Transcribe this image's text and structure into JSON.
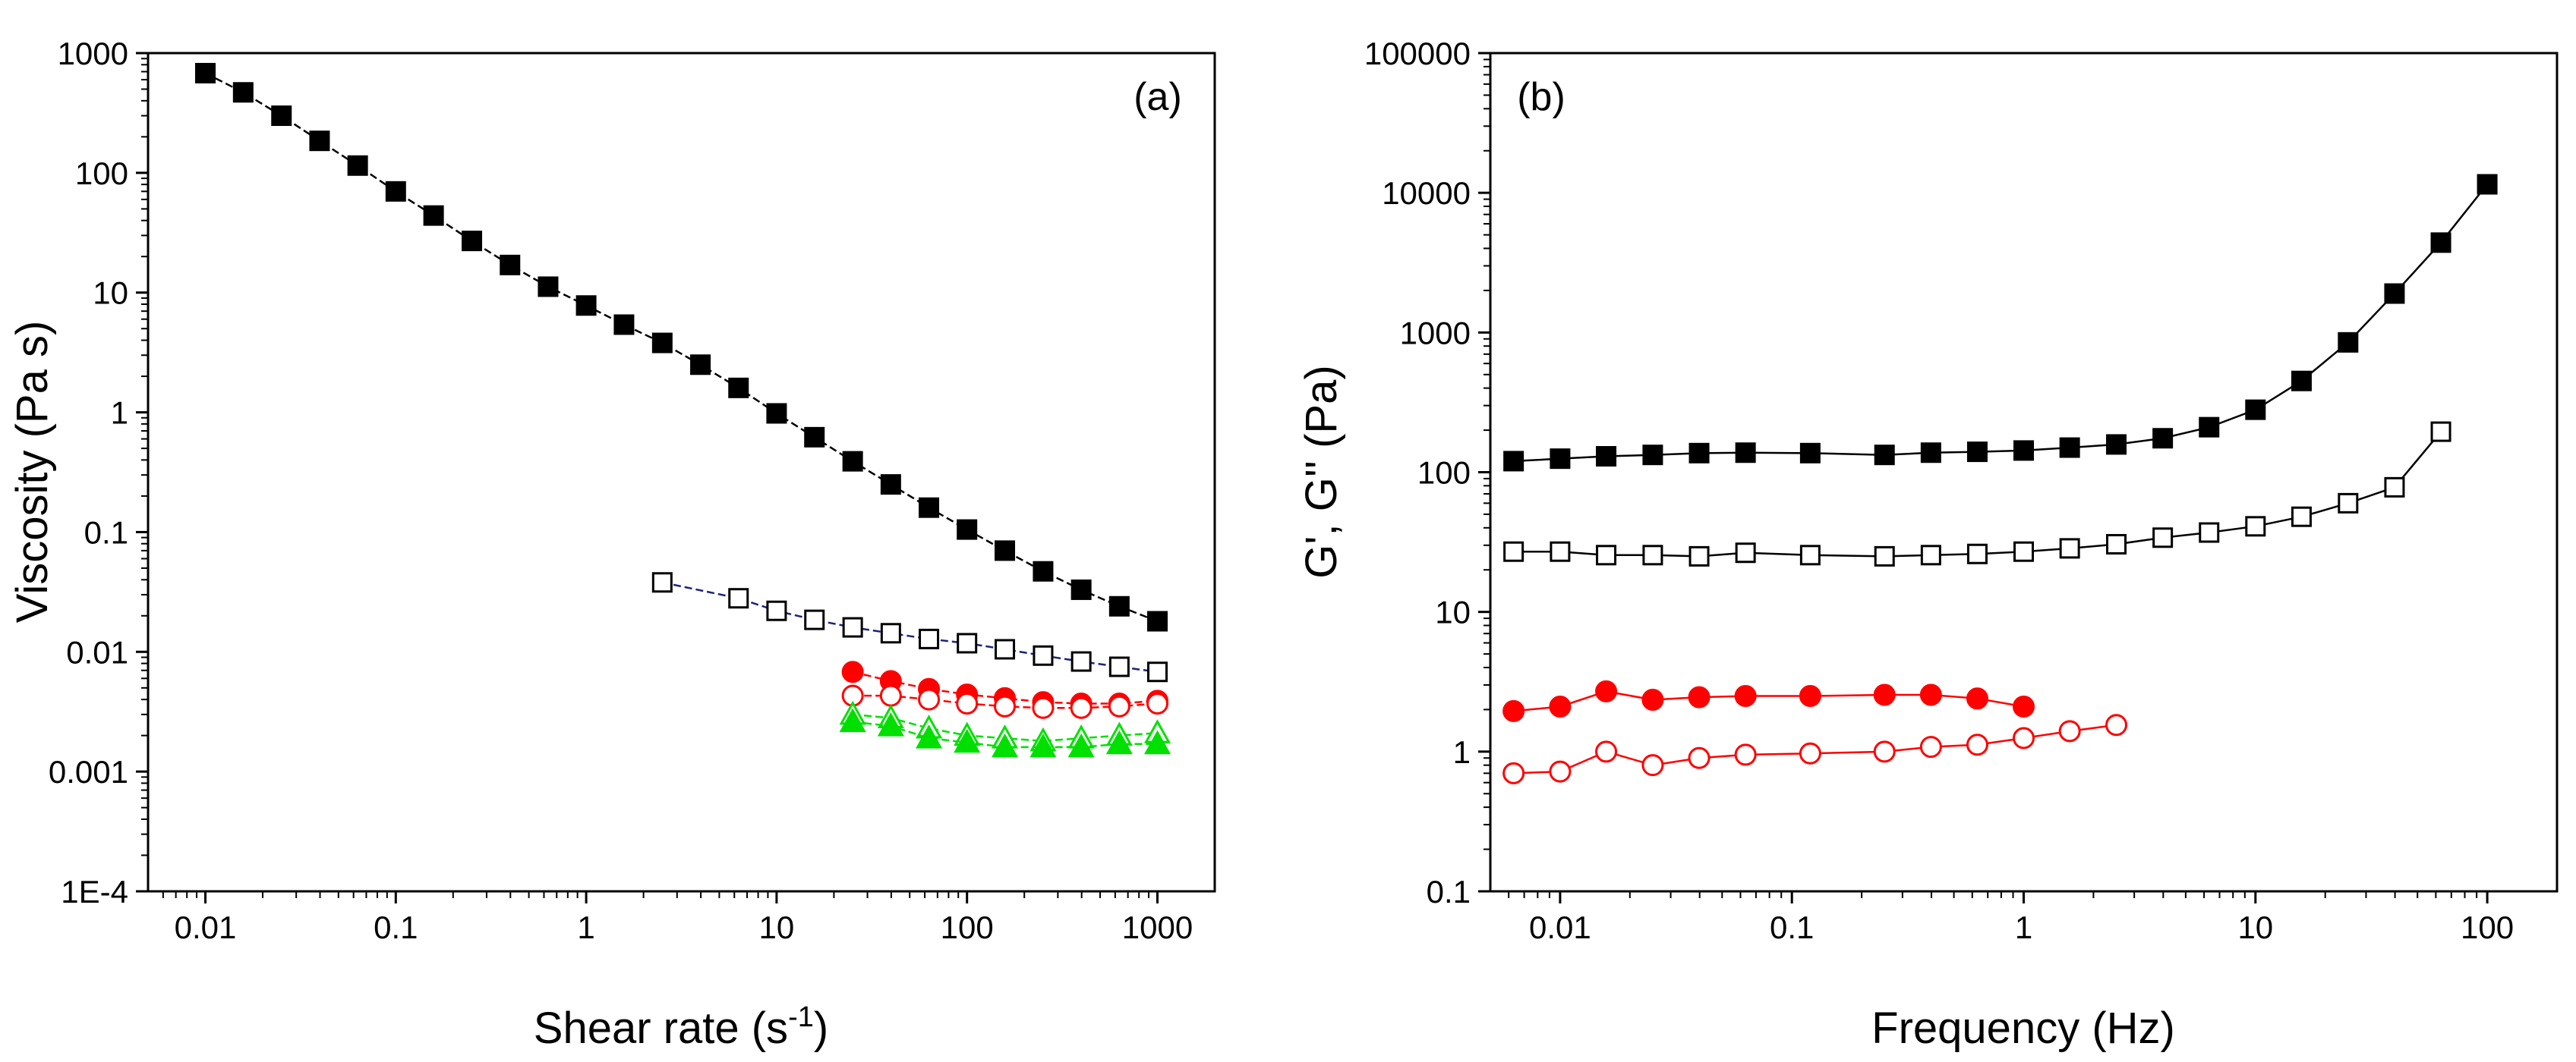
{
  "chart_data": [
    {
      "type": "scatter",
      "panel_label": "(a)",
      "xscale": "log",
      "yscale": "log",
      "xlim": [
        0.005,
        2000
      ],
      "ylim": [
        0.0001,
        1000
      ],
      "xticks": [
        0.01,
        0.1,
        1,
        10,
        100,
        1000
      ],
      "xtick_labels": [
        "0.01",
        "0.1",
        "1",
        "10",
        "100",
        "1000"
      ],
      "yticks": [
        0.0001,
        0.001,
        0.01,
        0.1,
        1,
        10,
        100,
        1000
      ],
      "ytick_labels": [
        "1E-4",
        "0.001",
        "0.01",
        "0.1",
        "1",
        "10",
        "100",
        "1000"
      ],
      "xlabel": {
        "main": "Shear rate (s",
        "sup": "-1",
        "end": ")"
      },
      "ylabel": "Viscosity (Pa s)",
      "series": [
        {
          "name": "black filled squares",
          "marker": "square",
          "filled": true,
          "color": "#000000",
          "line_color": "#000000",
          "line_style": "dashed",
          "x": [
            0.01,
            0.0158,
            0.0251,
            0.0398,
            0.0631,
            0.1,
            0.158,
            0.251,
            0.398,
            0.631,
            1,
            1.58,
            2.51,
            3.98,
            6.31,
            10,
            15.8,
            25.1,
            39.8,
            63.1,
            100,
            158,
            251,
            398,
            631,
            1000
          ],
          "y": [
            680,
            470,
            300,
            185,
            115,
            70,
            44,
            27,
            17,
            11.2,
            7.8,
            5.4,
            3.8,
            2.5,
            1.6,
            0.98,
            0.62,
            0.39,
            0.25,
            0.16,
            0.105,
            0.07,
            0.047,
            0.033,
            0.024,
            0.018
          ]
        },
        {
          "name": "black open squares",
          "marker": "square",
          "filled": false,
          "color": "#000000",
          "line_color": "#1a237e",
          "line_style": "dashed",
          "x": [
            2.51,
            6.31,
            10,
            15.8,
            25.1,
            39.8,
            63.1,
            100,
            158,
            251,
            398,
            631,
            1000
          ],
          "y": [
            0.038,
            0.028,
            0.022,
            0.0185,
            0.016,
            0.0143,
            0.0128,
            0.0118,
            0.0105,
            0.0093,
            0.0083,
            0.0075,
            0.0068
          ]
        },
        {
          "name": "red filled circles",
          "marker": "circle",
          "filled": true,
          "color": "#ff0000",
          "line_color": "#ff0000",
          "line_style": "dashed",
          "x": [
            25.1,
            39.8,
            63.1,
            100,
            158,
            251,
            398,
            631,
            1000
          ],
          "y": [
            0.0068,
            0.0057,
            0.0049,
            0.0044,
            0.0041,
            0.0038,
            0.0037,
            0.0037,
            0.0039
          ]
        },
        {
          "name": "red open circles",
          "marker": "circle",
          "filled": false,
          "color": "#ff0000",
          "line_color": "#ff0000",
          "line_style": "dashed",
          "x": [
            25.1,
            39.8,
            63.1,
            100,
            158,
            251,
            398,
            631,
            1000
          ],
          "y": [
            0.0043,
            0.0043,
            0.004,
            0.0037,
            0.0035,
            0.0034,
            0.0034,
            0.0035,
            0.0037
          ]
        },
        {
          "name": "green open triangles",
          "marker": "triangle",
          "filled": false,
          "color": "#00e000",
          "line_color": "#00e000",
          "line_style": "dashed",
          "x": [
            25.1,
            39.8,
            63.1,
            100,
            158,
            251,
            398,
            631,
            1000
          ],
          "y": [
            0.003,
            0.0028,
            0.0023,
            0.002,
            0.0019,
            0.0018,
            0.0019,
            0.002,
            0.0021
          ]
        },
        {
          "name": "green filled triangles",
          "marker": "triangle",
          "filled": true,
          "color": "#00e000",
          "line_color": "#00e000",
          "line_style": "dashed",
          "x": [
            25.1,
            39.8,
            63.1,
            100,
            158,
            251,
            398,
            631,
            1000
          ],
          "y": [
            0.0026,
            0.0024,
            0.0019,
            0.00175,
            0.0016,
            0.0016,
            0.0016,
            0.0017,
            0.0017
          ]
        }
      ]
    },
    {
      "type": "scatter",
      "panel_label": "(b)",
      "xscale": "log",
      "yscale": "log",
      "xlim": [
        0.005,
        200
      ],
      "ylim": [
        0.1,
        100000
      ],
      "xticks": [
        0.01,
        0.1,
        1,
        10,
        100
      ],
      "xtick_labels": [
        "0.01",
        "0.1",
        "1",
        "10",
        "100"
      ],
      "yticks": [
        0.1,
        1,
        10,
        100,
        1000,
        10000,
        100000
      ],
      "ytick_labels": [
        "0.1",
        "1",
        "10",
        "100",
        "1000",
        "10000",
        "100000"
      ],
      "xlabel": {
        "main": "Frequency (Hz)",
        "sup": "",
        "end": ""
      },
      "ylabel": "G', G'' (Pa)",
      "series": [
        {
          "name": "black filled squares",
          "marker": "square",
          "filled": true,
          "color": "#000000",
          "line_color": "#000000",
          "line_style": "solid",
          "x": [
            0.0063,
            0.01,
            0.0158,
            0.0251,
            0.0398,
            0.0631,
            0.12,
            0.251,
            0.398,
            0.631,
            1,
            1.58,
            2.51,
            3.98,
            6.31,
            10,
            15.8,
            25.1,
            39.8,
            63.1,
            100
          ],
          "y": [
            120,
            125,
            130,
            133,
            137,
            138,
            137,
            133,
            138,
            140,
            143,
            150,
            158,
            175,
            210,
            280,
            450,
            850,
            1900,
            4400,
            11500
          ]
        },
        {
          "name": "black open squares",
          "marker": "square",
          "filled": false,
          "color": "#000000",
          "line_color": "#000000",
          "line_style": "solid",
          "x": [
            0.0063,
            0.01,
            0.0158,
            0.0251,
            0.0398,
            0.0631,
            0.12,
            0.251,
            0.398,
            0.631,
            1,
            1.58,
            2.51,
            3.98,
            6.31,
            10,
            15.8,
            25.1,
            39.8,
            63.1
          ],
          "y": [
            27,
            27,
            25.5,
            25.5,
            25,
            26.5,
            25.5,
            25,
            25.5,
            26,
            27,
            28.5,
            30.5,
            34,
            37,
            41,
            48,
            60,
            78,
            195
          ]
        },
        {
          "name": "red filled circles",
          "marker": "circle",
          "filled": true,
          "color": "#ff0000",
          "line_color": "#ff0000",
          "line_style": "solid",
          "x": [
            0.0063,
            0.01,
            0.0158,
            0.0251,
            0.0398,
            0.0631,
            0.12,
            0.251,
            0.398,
            0.631,
            1
          ],
          "y": [
            1.95,
            2.1,
            2.7,
            2.35,
            2.45,
            2.5,
            2.5,
            2.55,
            2.55,
            2.4,
            2.1
          ]
        },
        {
          "name": "red open circles",
          "marker": "circle",
          "filled": false,
          "color": "#ff0000",
          "line_color": "#ff0000",
          "line_style": "solid",
          "x": [
            0.0063,
            0.01,
            0.0158,
            0.0251,
            0.0398,
            0.0631,
            0.12,
            0.251,
            0.398,
            0.631,
            1,
            1.58,
            2.51
          ],
          "y": [
            0.7,
            0.72,
            1.0,
            0.8,
            0.9,
            0.95,
            0.97,
            1.0,
            1.08,
            1.12,
            1.25,
            1.4,
            1.55
          ]
        }
      ]
    }
  ]
}
